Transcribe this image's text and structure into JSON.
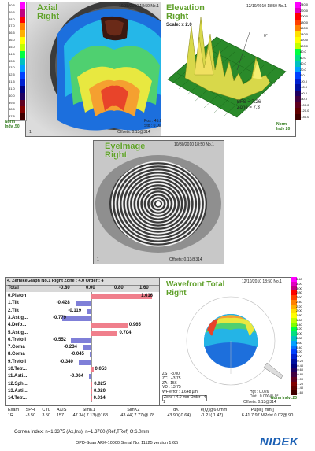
{
  "axial": {
    "title_line1": "Axial",
    "title_line2": "Right",
    "header": "10/30/2000 18:50 No.1",
    "pos": "Pos : 45.00 (7.50)",
    "std": "Std : 0.00 @",
    "offsets": "Offsets: 0.13@314",
    "norm_line1": "Norm",
    "norm_line2": "Indv .50",
    "scale": [
      "50.5",
      "49.5",
      "48.0",
      "47.0",
      "46.5",
      "46.0",
      "45.0",
      "44.5",
      "43.5",
      "43.0",
      "42.5",
      "41.5",
      "41.0",
      "40.0",
      "39.5",
      "38.5",
      "37.5"
    ],
    "index": "1"
  },
  "elevation": {
    "title_line1": "Elevation",
    "title_line2": "Right",
    "header": "12/10/2010 18:50 No.1",
    "scale_label": "Scale: x 2.0",
    "zero_label": "0°",
    "bfs": "BFS = 7.26",
    "zone": "Zone = 7.3",
    "norm_line1": "Norm",
    "norm_line2": "Indv 20",
    "scale": [
      "240.0",
      "220.0",
      "200.0",
      "180.0",
      "160.0",
      "140.0",
      "120.0",
      "100.0",
      "80.0",
      "60.0",
      "40.0",
      "20.0",
      "0.0",
      "-20.0",
      "-40.0",
      "-60.0",
      "-80.0",
      "-100.0",
      "-120.0",
      "-140.0"
    ]
  },
  "eyeimage": {
    "title_line1": "EyeImage",
    "title_line2": "Right",
    "header": "10/30/2010 18:50 No.1",
    "offsets": "Offsets: 0.13@314",
    "index": "1"
  },
  "zernike": {
    "header": "4. ZernikeGraph No.1 Right Zone : 4.0 Order : 4",
    "total_label": "Total",
    "axis_ticks": [
      "-0.80",
      "0.00",
      "0.80",
      "1.60"
    ],
    "rows": [
      {
        "label": "0.Piston",
        "value": "1.616",
        "v": 1.616
      },
      {
        "label": "1.Tilt",
        "value": "-0.428",
        "v": -0.428
      },
      {
        "label": "2.Tilt",
        "value": "-0.119",
        "v": -0.119
      },
      {
        "label": "3.Astig...",
        "value": "-0.779",
        "v": -0.779
      },
      {
        "label": "4.Defo...",
        "value": "0.965",
        "v": 0.965
      },
      {
        "label": "5.Astig...",
        "value": "0.704",
        "v": 0.704
      },
      {
        "label": "6.Trefoil",
        "value": "-0.552",
        "v": -0.552
      },
      {
        "label": "7.Coma",
        "value": "-0.234",
        "v": -0.234
      },
      {
        "label": "8.Coma",
        "value": "-0.045",
        "v": -0.045
      },
      {
        "label": "9.Trefoil",
        "value": "-0.340",
        "v": -0.34
      },
      {
        "label": "10.Tetr...",
        "value": "0.053",
        "v": 0.053
      },
      {
        "label": "11.Asti...",
        "value": "-0.064",
        "v": -0.064
      },
      {
        "label": "12.Sph...",
        "value": "0.025",
        "v": 0.025
      },
      {
        "label": "13.Asti...",
        "value": "0.020",
        "v": 0.02
      },
      {
        "label": "14.Tetr...",
        "value": "0.014",
        "v": 0.014
      }
    ]
  },
  "wavefront": {
    "title_line1": "Wavefront Total",
    "title_line2": "Right",
    "header": "12/10/2010 18:50 No.1",
    "info": [
      "ZS : -3.00",
      "ZC : +3.75",
      "ZA : 156",
      "VD : 13.75",
      "WF error : 1.648 µm",
      "Zone : 4.0 mm Order : 4"
    ],
    "hgt": "Hgt : 0.026",
    "dist": "Dist : 0.000@ 0°",
    "offsets": "Offsets: 0.13@314",
    "norm_line1": "Norm",
    "norm_line2": "Indv .20",
    "scale": [
      "3.40",
      "3.20",
      "3.00",
      "2.80",
      "2.60",
      "2.40",
      "2.20",
      "2.00",
      "1.80",
      "1.60",
      "1.40",
      "1.20",
      "1.00",
      "0.80",
      "0.60",
      "0.40",
      "0.20",
      "0.00",
      "-0.20",
      "-0.40",
      "-0.60",
      "-0.80",
      "-1.00",
      "-1.20",
      "-1.40",
      "-1.60"
    ],
    "index": "1"
  },
  "exam": {
    "headers": [
      "Exam",
      "SPH",
      "CYL",
      "AXIS",
      "SimK1",
      "SimK2",
      "dK",
      "e(Q)@6.0mm",
      "",
      "Pupil [ mm ]"
    ],
    "row": [
      "1R",
      "-3.50",
      "3.50",
      "157",
      "47.34( 7.13)@168",
      "43.44( 7.77)@ 78",
      "+3.90(-0.64)",
      "-1.21( 1.47)",
      "",
      "6.41  7.97 MPdst  0.02@ 90"
    ]
  },
  "footer": {
    "cornea": "Cornea Index: n=1.3375 (Ax,Ins), n=1.3760 (Ref,TRef)  Q:6.0mm",
    "model": "OPD-Scan ARK-10000 Serial No. 11125  version    1.62i",
    "brand": "NIDEK"
  },
  "colors": {
    "green_title": "#5fa02a",
    "nidek_blue": "#1a5fb4",
    "bar_positive": "#f07f8c",
    "bar_negative": "#7f7fd8"
  }
}
